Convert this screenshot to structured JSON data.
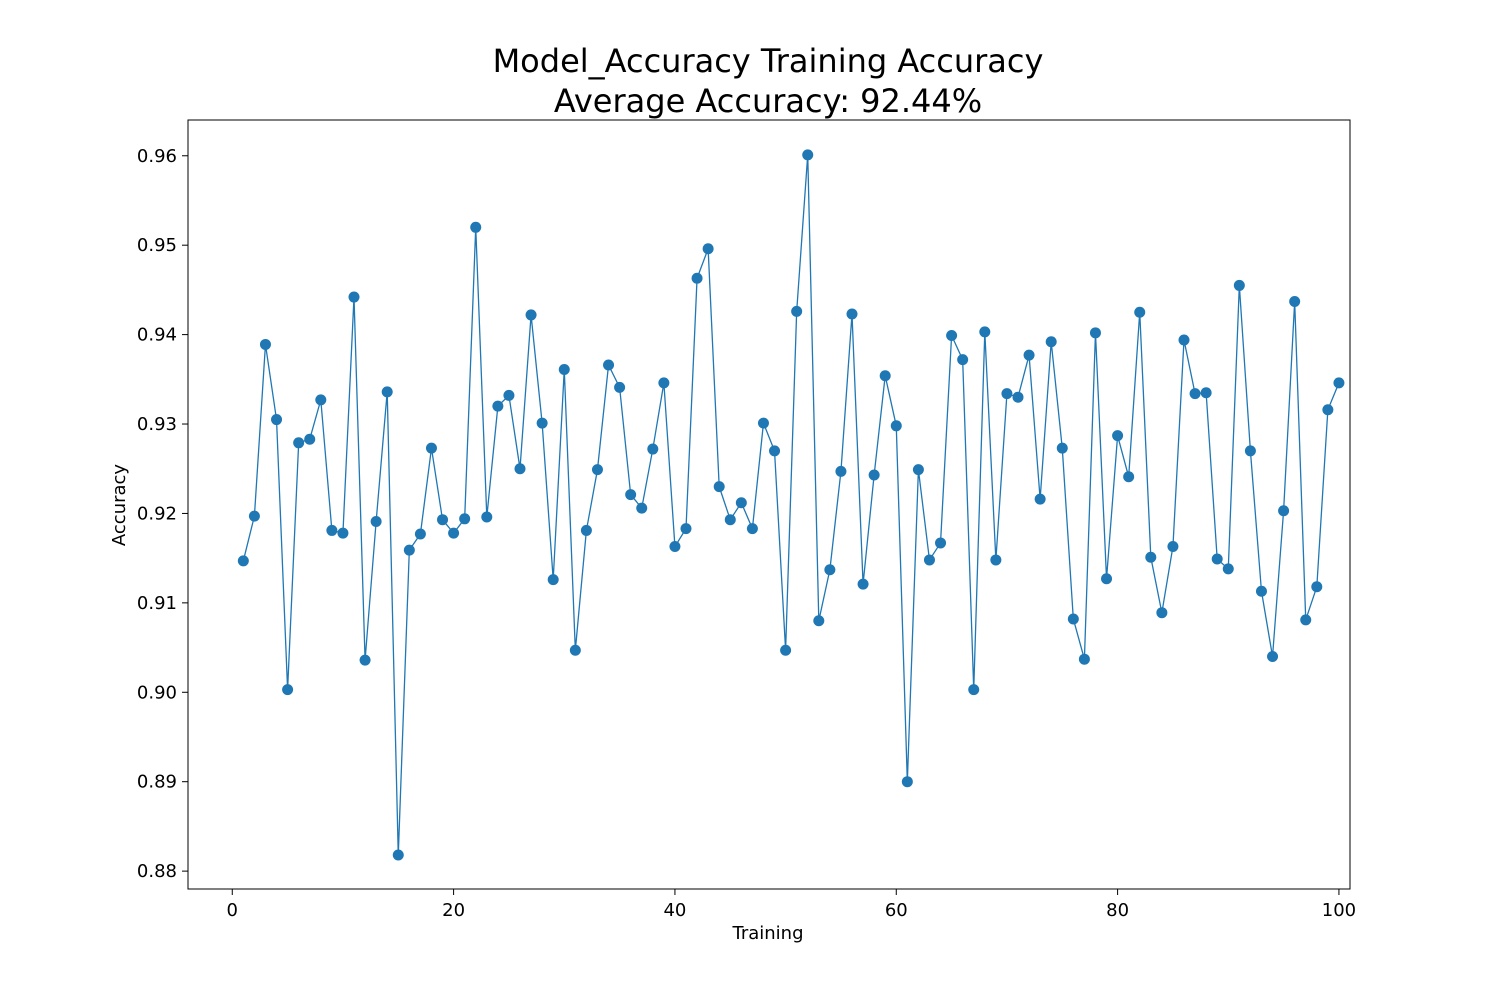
{
  "chart_data": {
    "type": "line",
    "title": "Model_Accuracy Training Accuracy",
    "subtitle": "Average Accuracy: 92.44%",
    "xlabel": "Training",
    "ylabel": "Accuracy",
    "xlim": [
      -4,
      101
    ],
    "ylim": [
      0.878,
      0.964
    ],
    "xticks": [
      0,
      20,
      40,
      60,
      80,
      100
    ],
    "yticks": [
      0.88,
      0.89,
      0.9,
      0.91,
      0.92,
      0.93,
      0.94,
      0.95,
      0.96
    ],
    "ytick_labels": [
      "0.88",
      "0.89",
      "0.90",
      "0.91",
      "0.92",
      "0.93",
      "0.94",
      "0.95",
      "0.96"
    ],
    "grid": false,
    "series": [
      {
        "color": "#1f77b4",
        "marker": "circle",
        "x": [
          1,
          2,
          3,
          4,
          5,
          6,
          7,
          8,
          9,
          10,
          11,
          12,
          13,
          14,
          15,
          16,
          17,
          18,
          19,
          20,
          21,
          22,
          23,
          24,
          25,
          26,
          27,
          28,
          29,
          30,
          31,
          32,
          33,
          34,
          35,
          36,
          37,
          38,
          39,
          40,
          41,
          42,
          43,
          44,
          45,
          46,
          47,
          48,
          49,
          50,
          51,
          52,
          53,
          54,
          55,
          56,
          57,
          58,
          59,
          60,
          61,
          62,
          63,
          64,
          65,
          66,
          67,
          68,
          69,
          70,
          71,
          72,
          73,
          74,
          75,
          76,
          77,
          78,
          79,
          80,
          81,
          82,
          83,
          84,
          85,
          86,
          87,
          88,
          89,
          90,
          91,
          92,
          93,
          94,
          95,
          96,
          97,
          98,
          99,
          100
        ],
        "values": [
          0.9147,
          0.9197,
          0.9389,
          0.9305,
          0.9003,
          0.9279,
          0.9283,
          0.9327,
          0.9181,
          0.9178,
          0.9442,
          0.9036,
          0.9191,
          0.9336,
          0.8818,
          0.9159,
          0.9177,
          0.9273,
          0.9193,
          0.9178,
          0.9194,
          0.952,
          0.9196,
          0.932,
          0.9332,
          0.925,
          0.9422,
          0.9301,
          0.9126,
          0.9361,
          0.9047,
          0.9181,
          0.9249,
          0.9366,
          0.9341,
          0.9221,
          0.9206,
          0.9272,
          0.9346,
          0.9163,
          0.9183,
          0.9463,
          0.9496,
          0.923,
          0.9193,
          0.9212,
          0.9183,
          0.9301,
          0.927,
          0.9047,
          0.9426,
          0.9601,
          0.908,
          0.9137,
          0.9247,
          0.9423,
          0.9121,
          0.9243,
          0.9354,
          0.9298,
          0.89,
          0.9249,
          0.9148,
          0.9167,
          0.9399,
          0.9372,
          0.9003,
          0.9403,
          0.9148,
          0.9334,
          0.933,
          0.9377,
          0.9216,
          0.9392,
          0.9273,
          0.9082,
          0.9037,
          0.9402,
          0.9127,
          0.9287,
          0.9241,
          0.9425,
          0.9151,
          0.9089,
          0.9163,
          0.9394,
          0.9334,
          0.9335,
          0.9149,
          0.9138,
          0.9455,
          0.927,
          0.9113,
          0.904,
          0.9203,
          0.9437,
          0.9081,
          0.9118,
          0.9316,
          0.9346
        ]
      }
    ]
  }
}
